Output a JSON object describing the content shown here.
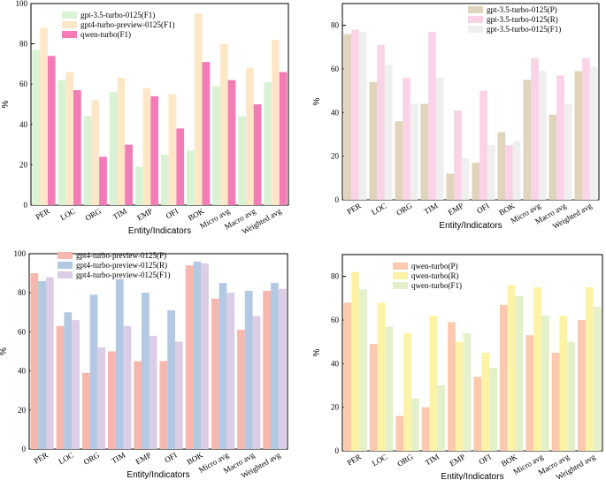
{
  "chart_data": [
    {
      "type": "bar",
      "categories": [
        "PER",
        "LOC",
        "ORG",
        "TIM",
        "EMP",
        "OFI",
        "BOK",
        "Micro avg",
        "Macro avg",
        "Weighted avg"
      ],
      "series": [
        {
          "name": "gpt-3.5-turbo-0125(F1)",
          "color": "#d9f2d3",
          "values": [
            77,
            62,
            44,
            56,
            19,
            25,
            27,
            59,
            44,
            61
          ]
        },
        {
          "name": "gpt4-turbo-preview-0125(F1)",
          "color": "#fde7c7",
          "values": [
            88,
            66,
            52,
            63,
            58,
            55,
            95,
            80,
            68,
            82
          ]
        },
        {
          "name": "qwen-turbo(F1)",
          "color": "#f47cb6",
          "values": [
            74,
            57,
            24,
            30,
            54,
            38,
            71,
            62,
            50,
            66
          ]
        }
      ],
      "ylim": [
        0,
        100
      ],
      "yticks": [
        0,
        20,
        40,
        60,
        80,
        100
      ],
      "ylabel": "%",
      "xlabel": "Entity/Indicators",
      "legend": "top-left"
    },
    {
      "type": "bar",
      "categories": [
        "PER",
        "LOC",
        "ORG",
        "TIM",
        "EMP",
        "OFI",
        "BOK",
        "Micro avg",
        "Macro avg",
        "Weighted avg"
      ],
      "series": [
        {
          "name": "gpt-3.5-turbo-0125(P)",
          "color": "#e0d4bd",
          "values": [
            76,
            54,
            36,
            44,
            12,
            17,
            31,
            55,
            39,
            59
          ]
        },
        {
          "name": "gpt-3.5-turbo-0125(R)",
          "color": "#fad3e6",
          "values": [
            78,
            71,
            56,
            77,
            41,
            50,
            25,
            65,
            57,
            65
          ]
        },
        {
          "name": "gpt-3.5-turbo-0125(F1)",
          "color": "#efefef",
          "values": [
            77,
            62,
            44,
            56,
            19,
            25,
            27,
            59,
            44,
            61
          ]
        }
      ],
      "ylim": [
        0,
        90
      ],
      "yticks": [
        0,
        20,
        40,
        60,
        80
      ],
      "ylabel": "%",
      "xlabel": "Entity/Indicators",
      "legend": "top-right"
    },
    {
      "type": "bar",
      "categories": [
        "PER",
        "LOC",
        "ORG",
        "TIM",
        "EMP",
        "OFI",
        "BOK",
        "Micro avg",
        "Macro avg",
        "Weighted avg"
      ],
      "series": [
        {
          "name": "gpt4-turbo-preview-0125(P)",
          "color": "#f6b7ae",
          "values": [
            90,
            63,
            39,
            50,
            45,
            45,
            94,
            77,
            61,
            81
          ]
        },
        {
          "name": "gpt4-turbo-preview-0125(R)",
          "color": "#b3c8e2",
          "values": [
            86,
            70,
            79,
            87,
            80,
            71,
            96,
            85,
            81,
            85
          ]
        },
        {
          "name": "gpt4-turbo-preview-0125(F1)",
          "color": "#dccde6",
          "values": [
            88,
            66,
            52,
            63,
            58,
            55,
            95,
            80,
            68,
            82
          ]
        }
      ],
      "ylim": [
        0,
        100
      ],
      "yticks": [
        0,
        20,
        40,
        60,
        80,
        100
      ],
      "ylabel": "%",
      "xlabel": "Entity/Indicators",
      "legend": "top-left"
    },
    {
      "type": "bar",
      "categories": [
        "PER",
        "LOC",
        "ORG",
        "TIM",
        "EMP",
        "OFI",
        "BOK",
        "Micro avg",
        "Macro avg",
        "Weighted avg"
      ],
      "series": [
        {
          "name": "qwen-turbo(P)",
          "color": "#fcc9ae",
          "values": [
            68,
            49,
            16,
            20,
            59,
            34,
            67,
            53,
            45,
            60
          ]
        },
        {
          "name": "qwen-turbo(R)",
          "color": "#fdf3a6",
          "values": [
            82,
            68,
            54,
            62,
            50,
            45,
            76,
            75,
            62,
            75
          ]
        },
        {
          "name": "qwen-turbo(F1)",
          "color": "#e3f0c9",
          "values": [
            74,
            57,
            24,
            30,
            54,
            38,
            71,
            62,
            50,
            66
          ]
        }
      ],
      "ylim": [
        0,
        90
      ],
      "yticks": [
        0,
        20,
        40,
        60,
        80
      ],
      "ylabel": "%",
      "xlabel": "Entity/Indicators",
      "legend": "top-left"
    }
  ]
}
